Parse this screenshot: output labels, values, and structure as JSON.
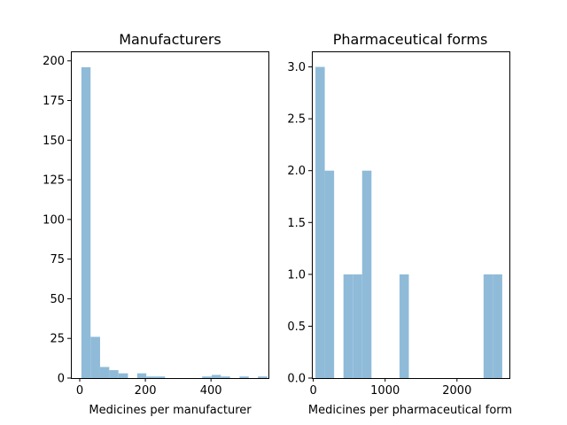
{
  "chart_data": [
    {
      "type": "bar",
      "title": "Manufacturers",
      "xlabel": "Medicines per manufacturer",
      "ylabel": "",
      "color": "#8fbbd9",
      "xlim": [
        -27,
        575
      ],
      "ylim": [
        0,
        206
      ],
      "xticks": [
        0,
        200,
        400
      ],
      "yticks": [
        0,
        25,
        50,
        75,
        100,
        125,
        150,
        175,
        200
      ],
      "ytick_decimals": 0,
      "bins": [
        {
          "x0": 5,
          "x1": 33,
          "value": 196
        },
        {
          "x0": 33,
          "x1": 62,
          "value": 26
        },
        {
          "x0": 62,
          "x1": 90,
          "value": 7
        },
        {
          "x0": 90,
          "x1": 118,
          "value": 5
        },
        {
          "x0": 118,
          "x1": 147,
          "value": 3
        },
        {
          "x0": 175,
          "x1": 203,
          "value": 3
        },
        {
          "x0": 203,
          "x1": 232,
          "value": 1
        },
        {
          "x0": 232,
          "x1": 260,
          "value": 1
        },
        {
          "x0": 373,
          "x1": 402,
          "value": 1
        },
        {
          "x0": 402,
          "x1": 430,
          "value": 2
        },
        {
          "x0": 430,
          "x1": 458,
          "value": 1
        },
        {
          "x0": 487,
          "x1": 515,
          "value": 1
        },
        {
          "x0": 543,
          "x1": 572,
          "value": 1
        }
      ]
    },
    {
      "type": "bar",
      "title": "Pharmaceutical forms",
      "xlabel": "Medicines per pharmaceutical form",
      "ylabel": "",
      "color": "#8fbbd9",
      "xlim": [
        -20,
        2730
      ],
      "ylim": [
        0,
        3.15
      ],
      "xticks": [
        0,
        1000,
        2000
      ],
      "yticks": [
        0.0,
        0.5,
        1.0,
        1.5,
        2.0,
        2.5,
        3.0
      ],
      "ytick_decimals": 1,
      "bins": [
        {
          "x0": 30,
          "x1": 160,
          "value": 3
        },
        {
          "x0": 160,
          "x1": 290,
          "value": 2
        },
        {
          "x0": 420,
          "x1": 550,
          "value": 1
        },
        {
          "x0": 550,
          "x1": 680,
          "value": 1
        },
        {
          "x0": 680,
          "x1": 810,
          "value": 2
        },
        {
          "x0": 1200,
          "x1": 1330,
          "value": 1
        },
        {
          "x0": 2370,
          "x1": 2500,
          "value": 1
        },
        {
          "x0": 2500,
          "x1": 2630,
          "value": 1
        }
      ]
    }
  ]
}
